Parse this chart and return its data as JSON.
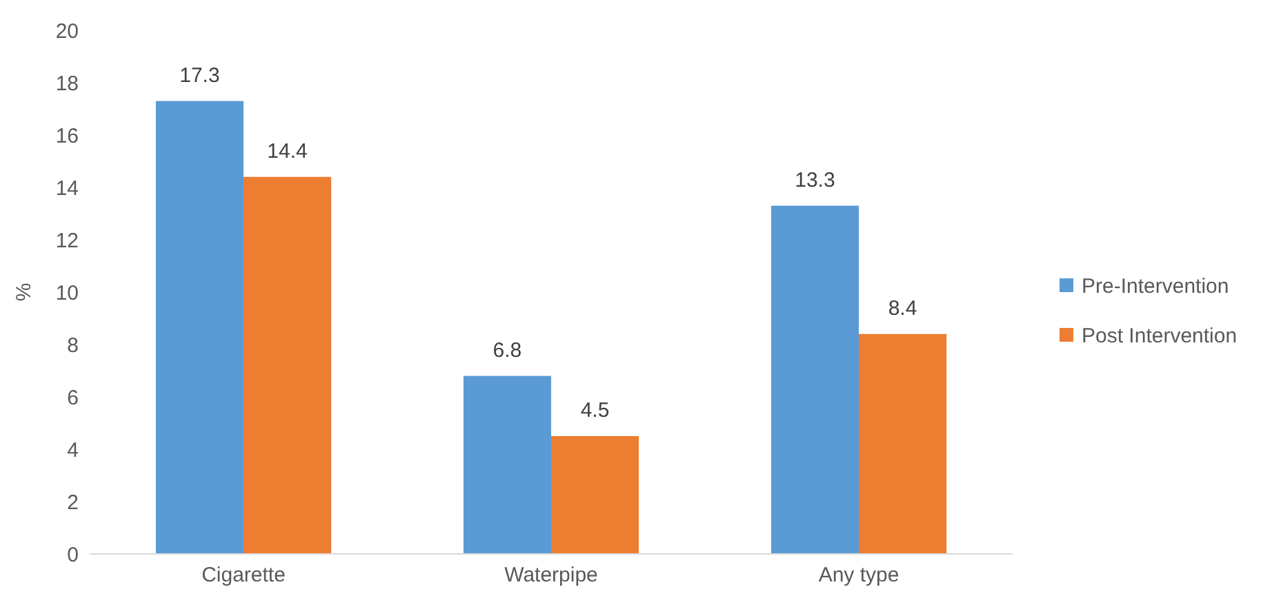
{
  "chart_data": {
    "type": "bar",
    "ylabel": "%",
    "categories": [
      "Cigarette",
      "Waterpipe",
      "Any type"
    ],
    "series": [
      {
        "name": "Pre-Intervention",
        "color": "#5b9bd5",
        "values": [
          17.3,
          6.8,
          13.3
        ]
      },
      {
        "name": "Post Intervention",
        "color": "#ed7d31",
        "values": [
          14.4,
          4.5,
          8.4
        ]
      }
    ],
    "ylim": [
      0,
      20
    ],
    "yticks": [
      0,
      2,
      4,
      6,
      8,
      10,
      12,
      14,
      16,
      18,
      20
    ],
    "data_labels": true,
    "legend": "right",
    "grid": false
  }
}
